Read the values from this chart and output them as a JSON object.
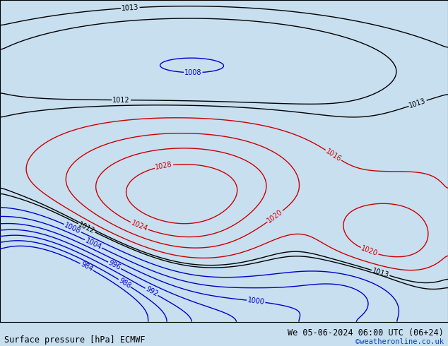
{
  "title_left": "Surface pressure [hPa] ECMWF",
  "title_right": "We 05-06-2024 06:00 UTC (06+24)",
  "copyright": "©weatheronline.co.uk",
  "bg_color_ocean": "#c8dff0",
  "bg_color_land_outside": "#d8d8d8",
  "land_color": "#c8f0a0",
  "figsize": [
    6.34,
    4.9
  ],
  "dpi": 100,
  "text_color_left": "#000000",
  "text_color_right": "#000000",
  "text_color_copy": "#0044bb",
  "font_size_title": 8.5,
  "font_size_copy": 7.5,
  "label_fontsize": 7,
  "extent": [
    90,
    185,
    -58,
    22
  ],
  "pressure_levels": [
    984,
    988,
    992,
    996,
    1000,
    1004,
    1008,
    1012,
    1013,
    1016,
    1020,
    1024,
    1028
  ],
  "color_blue_below": 1012,
  "color_black_range": [
    1012,
    1014
  ],
  "color_red_above": 1014,
  "contour_linewidth": 1.0,
  "label_levels": [
    984,
    988,
    992,
    996,
    1000,
    1004,
    1008,
    1012,
    1013,
    1016,
    1020,
    1024,
    1028
  ]
}
